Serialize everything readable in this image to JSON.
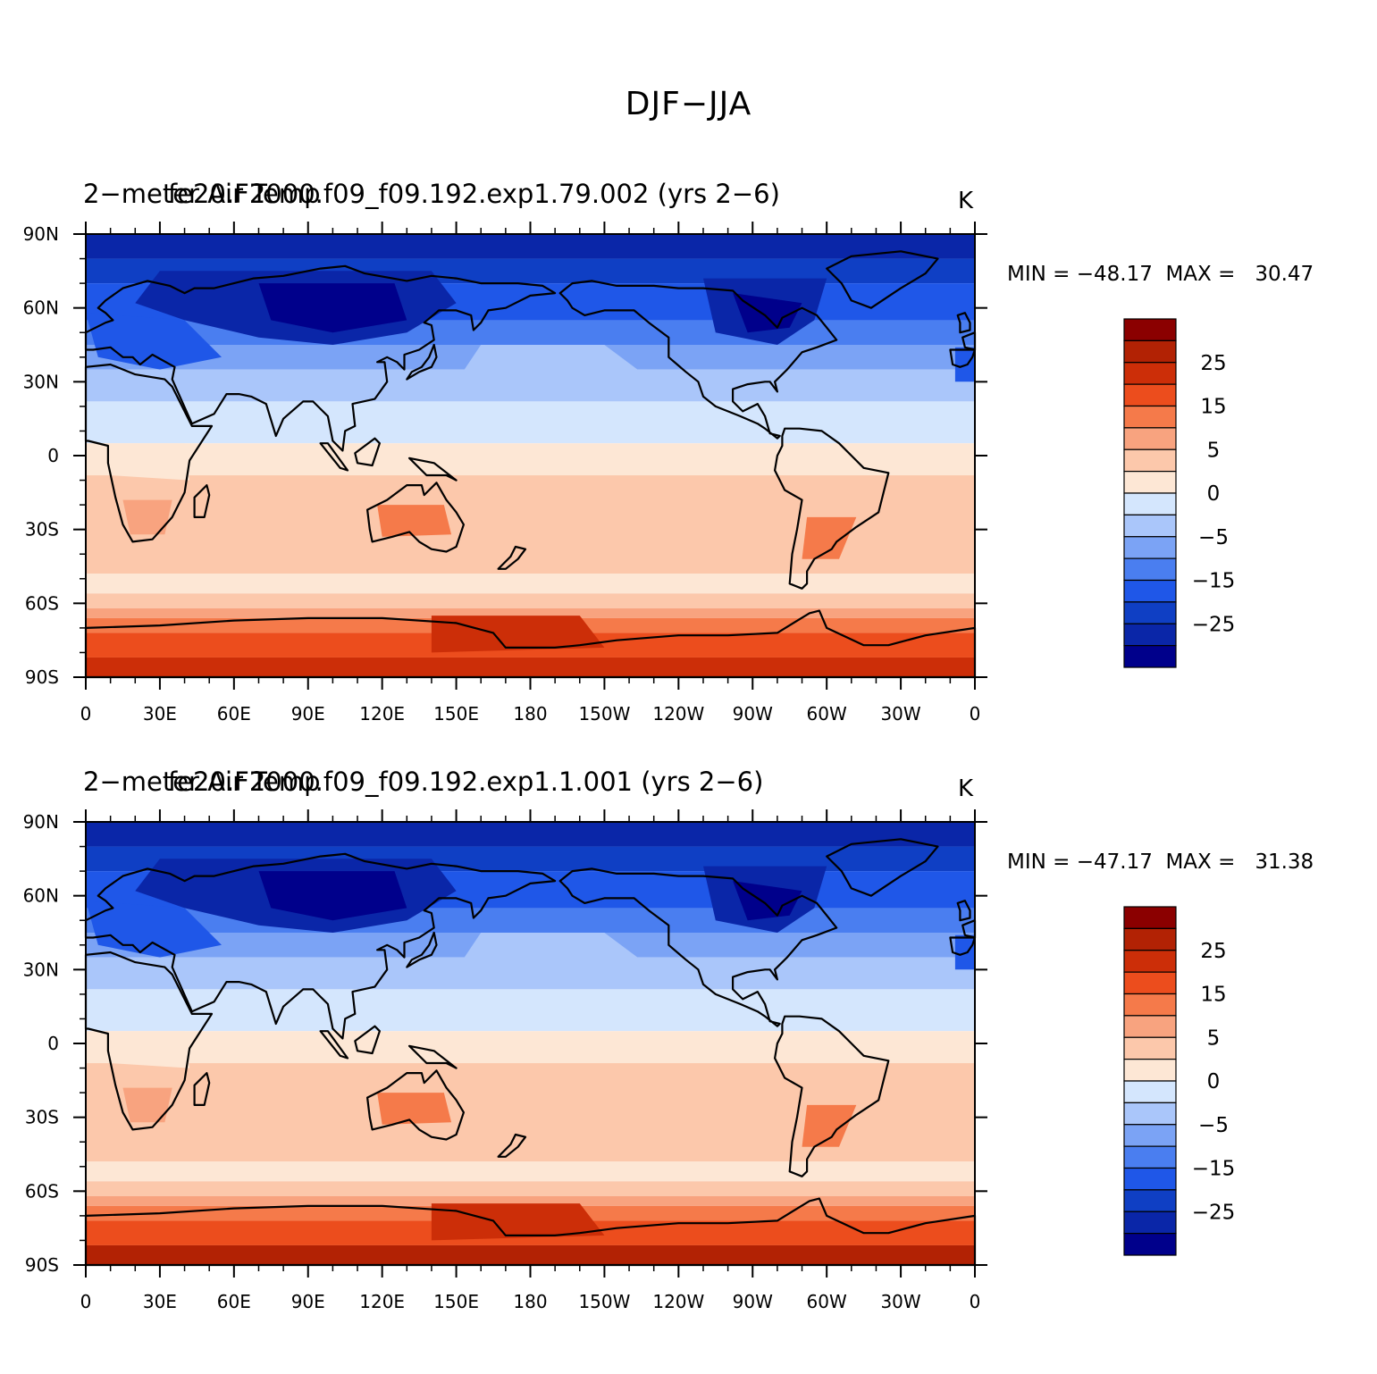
{
  "title": "DJF−JJA",
  "units": "K",
  "colors": {
    "levels": [
      "#00008b",
      "#0a26a8",
      "#0f3fc4",
      "#1f57e8",
      "#4a7ef0",
      "#7ba3f5",
      "#aac6fa",
      "#d4e6fd",
      "#fde7d5",
      "#fcc8ab",
      "#f8a37f",
      "#f57a4a",
      "#ec4d1d",
      "#cc2e08",
      "#b22204",
      "#8b0000"
    ],
    "coast": "#000000",
    "ocean_note": "land outlines drawn schematically"
  },
  "lat_labels": [
    "90N",
    "60N",
    "30N",
    "0",
    "30S",
    "60S",
    "90S"
  ],
  "lon_labels": [
    "0",
    "30E",
    "60E",
    "90E",
    "120E",
    "150E",
    "180",
    "150W",
    "120W",
    "90W",
    "60W",
    "30W",
    "0"
  ],
  "colorbar_labels": [
    "25",
    "15",
    "5",
    "0",
    "−5",
    "−15",
    "−25"
  ],
  "panels": [
    {
      "left_title": "2−meter Air Temp",
      "center_title": "fe20.F2000.f09_f09.192.exp1.79.002 (yrs 2−6)",
      "units": "K",
      "minmax": "MIN = −48.17  MAX =   30.47"
    },
    {
      "left_title": "2−meter Air Temp",
      "center_title": "fe20.F2000.f09_f09.192.exp1.1.001 (yrs 2−6)",
      "units": "K",
      "minmax": "MIN = −47.17  MAX =   31.38"
    }
  ]
}
